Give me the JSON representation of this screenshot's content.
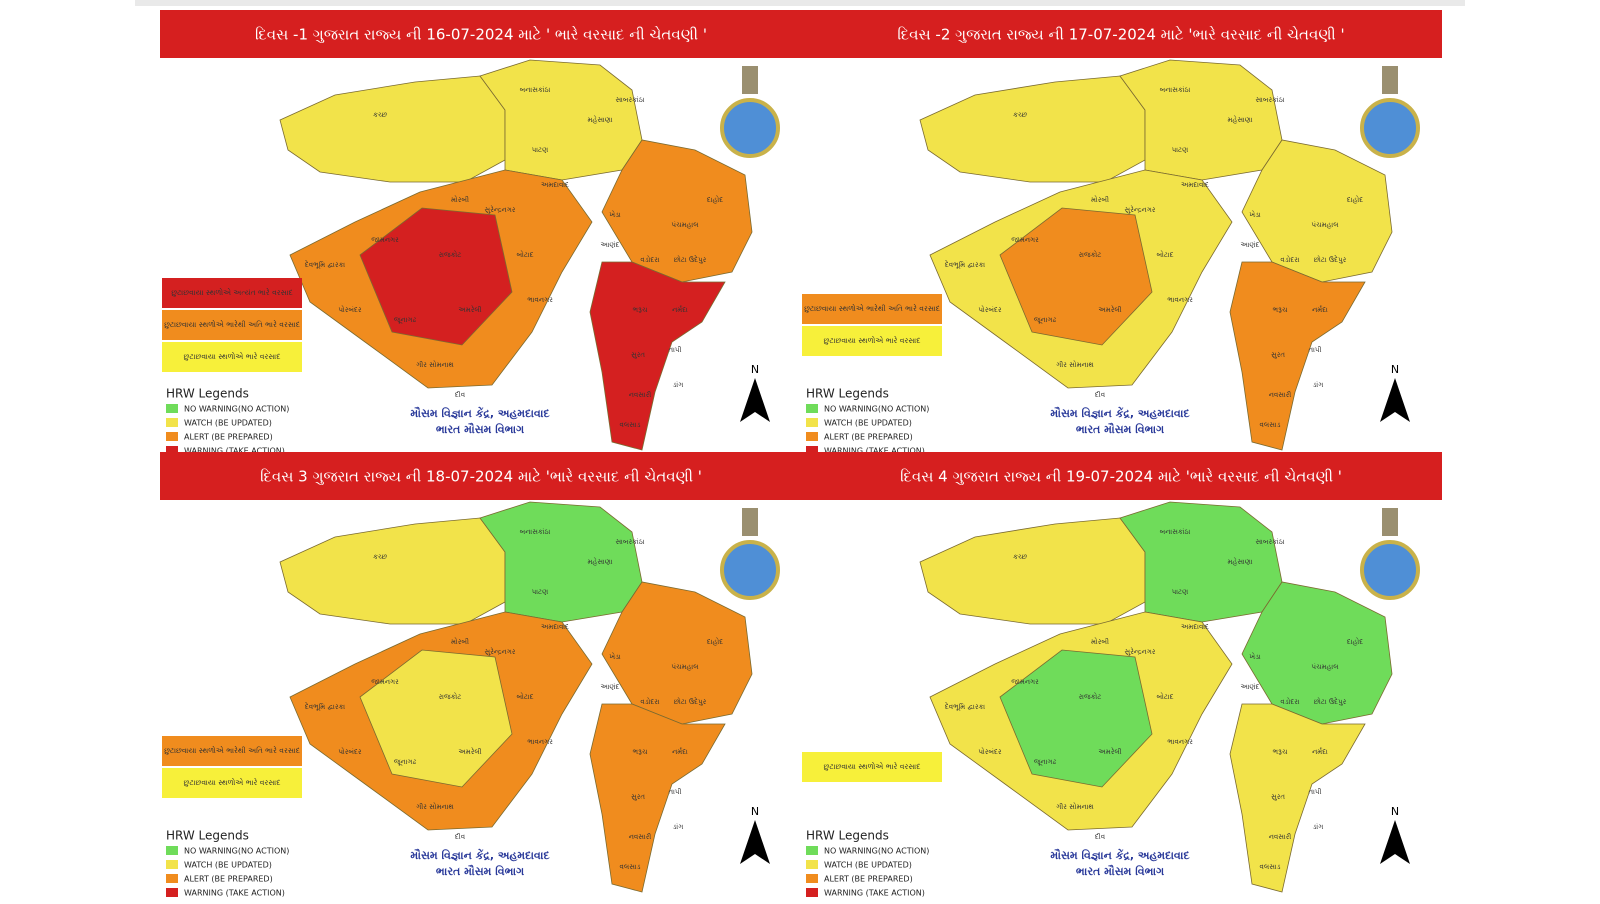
{
  "panels": [
    {
      "title": "દિવસ -1 ગુજરાત રાજ્ય ની  16-07-2024  માટે ' ભારે વરસાદ ની ચેતવણી '",
      "region_colors": [
        "#f2e34a",
        "#f2e34a",
        "#f08c1e",
        "#f08c1e",
        "#d42020",
        "#d42020"
      ],
      "warnings": [
        {
          "text": "છુટાછવાયા સ્થળોએ અત્યંત ભારે વરસાદ",
          "color": "#d42020"
        },
        {
          "text": "છુટાછવાયા સ્થળોએ ભારેથી અતિ ભારે વરસાદ",
          "color": "#f08c1e"
        },
        {
          "text": "છુટાછવાયા સ્થળોએ ભારે વરસાદ",
          "color": "#f7f03a"
        }
      ]
    },
    {
      "title": "દિવસ -2 ગુજરાત રાજ્ય ની  17-07-2024 માટે 'ભારે વરસાદ ની ચેતવણી '",
      "region_colors": [
        "#f2e34a",
        "#f2e34a",
        "#f2e34a",
        "#f2e34a",
        "#f08c1e",
        "#f08c1e"
      ],
      "warnings": [
        {
          "text": "છુટાછવાયા સ્થળોએ ભારેથી અતિ ભારે વરસાદ",
          "color": "#f08c1e"
        },
        {
          "text": "છુટાછવાયા સ્થળોએ ભારે વરસાદ",
          "color": "#f7f03a"
        }
      ]
    },
    {
      "title": "દિવસ 3 ગુજરાત રાજ્ય ની 18-07-2024 માટે 'ભારે વરસાદ ની ચેતવણી '",
      "region_colors": [
        "#f2e34a",
        "#6fdc5a",
        "#f08c1e",
        "#f08c1e",
        "#f2e34a",
        "#f08c1e"
      ],
      "warnings": [
        {
          "text": "છુટાછવાયા સ્થળોએ ભારેથી અતિ ભારે વરસાદ",
          "color": "#f08c1e"
        },
        {
          "text": "છુટાછવાયા સ્થળોએ ભારે વરસાદ",
          "color": "#f7f03a"
        }
      ]
    },
    {
      "title": "દિવસ 4 ગુજરાત રાજ્ય ની  19-07-2024 માટે 'ભારે વરસાદ ની ચેતવણી '",
      "region_colors": [
        "#f2e34a",
        "#6fdc5a",
        "#6fdc5a",
        "#f2e34a",
        "#6fdc5a",
        "#f2e34a"
      ],
      "warnings": [
        {
          "text": "છુટાછવાયા સ્થળોએ ભારે વરસાદ",
          "color": "#f7f03a"
        }
      ]
    }
  ],
  "legend": {
    "title": "HRW Legends",
    "items": [
      {
        "text": "NO WARNING(NO ACTION)",
        "color": "#6fdc5a"
      },
      {
        "text": "WATCH (BE UPDATED)",
        "color": "#f2e34a"
      },
      {
        "text": "ALERT (BE PREPARED)",
        "color": "#f08c1e"
      },
      {
        "text": "WARNING (TAKE ACTION)",
        "color": "#d42020"
      }
    ]
  },
  "footer": [
    "મૌસમ વિજ્ઞાન કેંદ્ર, અહમદાવાદ",
    "ભારત મૌસમ વિભાગ"
  ],
  "north": "N",
  "districts": [
    "કચ્છ",
    "બનાસકાંઠા",
    "પાટણ",
    "મહેસાણા",
    "સાબરકાંઠા",
    "અમદાવાદ",
    "મોરબી",
    "સુરેન્દ્રનગર",
    "જામનગર",
    "દેવભૂમિ દ્વારકા",
    "રાજકોટ",
    "બોટાદ",
    "ભાવનગર",
    "અમરેલી",
    "જૂનાગઢ",
    "પોરબંદર",
    "ગીર સોમનાથ",
    "દીવ",
    "ખેડા",
    "આણંદ",
    "પંચમહાલ",
    "દાહોદ",
    "વડોદરા",
    "છોટા ઉદેપુર",
    "ભરૂચ",
    "નર્મદા",
    "સુરત",
    "તાપી",
    "નવસારી",
    "ડાંગ",
    "વલસાડ"
  ]
}
